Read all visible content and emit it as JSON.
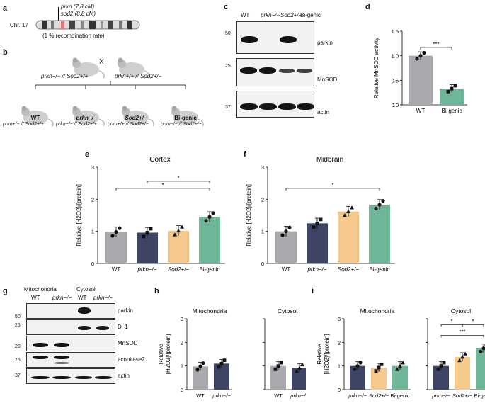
{
  "panels": {
    "a": "a",
    "b": "b",
    "c": "c",
    "d": "d",
    "e": "e",
    "f": "f",
    "g": "g",
    "h": "h",
    "i": "i"
  },
  "panel_a": {
    "gene1": "prkn (7.8 cM)",
    "gene2": "sod2 (8.8 cM)",
    "chr": "Chr. 17",
    "note": "(1 % recombination rate)"
  },
  "panel_b": {
    "cross_symbol": "X",
    "parent1": "prkn−/− // Sod2+/+",
    "parent2": "prkn+/+ // Sod2+/−",
    "offspring": [
      {
        "name": "WT",
        "geno": "prkn+/+ // Sod2+/+"
      },
      {
        "name": "prkn−/−",
        "geno": "prkn−/− // Sod2+/+"
      },
      {
        "name": "Sod2+/−",
        "geno": "prkn+/+ // Sod2+/−"
      },
      {
        "name": "Bi-genic",
        "geno": "prkn−/− // Sod2+/−"
      }
    ]
  },
  "panel_c": {
    "lanes": [
      "WT",
      "prkn−/−",
      "Sod2+/−",
      "Bi-genic"
    ],
    "blots": [
      {
        "mw": "50",
        "label": "parkin"
      },
      {
        "mw": "25",
        "label": "MnSOD"
      },
      {
        "mw": "37",
        "label": "actin"
      }
    ]
  },
  "panel_g": {
    "groups": [
      "Mitochondria",
      "Cytosol"
    ],
    "lanes": [
      "WT",
      "prkn−/−",
      "WT",
      "prkn−/−"
    ],
    "blots": [
      {
        "mw": "50",
        "label": "parkin"
      },
      {
        "mw": "25",
        "label": "Dj-1"
      },
      {
        "mw": "20",
        "label": "MnSOD"
      },
      {
        "mw": "75",
        "label": "aconitase2"
      },
      {
        "mw": "37",
        "label": "actin"
      }
    ]
  },
  "chart_data": [
    {
      "panel": "d",
      "type": "bar",
      "ylabel": "Relative MnSOD activity",
      "ylim": [
        0,
        1.5
      ],
      "yticks": [
        "0.0",
        "0.5",
        "1.0",
        "1.5"
      ],
      "categories": [
        "WT",
        "Bi-genic"
      ],
      "values": [
        1.0,
        0.33
      ],
      "colors": [
        "#a9a8ad",
        "#6fb597"
      ],
      "significance": [
        {
          "pair": "WT–Bi-genic",
          "label": "***"
        }
      ]
    },
    {
      "panel": "e",
      "type": "bar",
      "title": "Cortex",
      "ylabel": "Relative [H2O2]/[protein]",
      "ylim": [
        0,
        3
      ],
      "yticks": [
        "0",
        "1",
        "2",
        "3"
      ],
      "categories": [
        "WT",
        "prkn−/−",
        "Sod2+/−",
        "Bi-genic"
      ],
      "values": [
        0.98,
        0.96,
        1.02,
        1.45
      ],
      "colors": [
        "#a9a8ad",
        "#3d4466",
        "#f5c98c",
        "#6fb597"
      ],
      "significance": [
        {
          "pair": "WT–Bi-genic",
          "label": "*"
        },
        {
          "pair": "prkn−/−–Bi-genic",
          "label": "*"
        }
      ]
    },
    {
      "panel": "f",
      "type": "bar",
      "title": "Midbrain",
      "ylabel": "Relative [H2O2]/[protein]",
      "ylim": [
        0,
        3
      ],
      "yticks": [
        "0",
        "1",
        "2",
        "3"
      ],
      "categories": [
        "WT",
        "prkn−/−",
        "Sod2+/−",
        "Bi-genic"
      ],
      "values": [
        1.0,
        1.25,
        1.62,
        1.83
      ],
      "colors": [
        "#a9a8ad",
        "#3d4466",
        "#f5c98c",
        "#6fb597"
      ],
      "significance": [
        {
          "pair": "WT–Bi-genic",
          "label": "*"
        }
      ]
    },
    {
      "panel": "h",
      "type": "bar",
      "ylabel": "Relative [H2O2]/[protein]",
      "ylim": [
        0,
        3
      ],
      "yticks": [
        "0",
        "1",
        "2",
        "3"
      ],
      "groups": [
        {
          "title": "Mitochondria",
          "categories": [
            "WT",
            "prkn−/−"
          ],
          "values": [
            0.98,
            1.1
          ],
          "colors": [
            "#a9a8ad",
            "#3d4466"
          ]
        },
        {
          "title": "Cytosol",
          "categories": [
            "WT",
            "prkn−/−"
          ],
          "values": [
            1.0,
            0.92
          ],
          "colors": [
            "#a9a8ad",
            "#3d4466"
          ]
        }
      ]
    },
    {
      "panel": "i",
      "type": "bar",
      "ylabel": "Relative [H2O2]/[protein]",
      "ylim": [
        0,
        3
      ],
      "yticks": [
        "0",
        "1",
        "2",
        "3"
      ],
      "groups": [
        {
          "title": "Mitochondria",
          "categories": [
            "prkn−/−",
            "Sod2+/−",
            "Bi-genic"
          ],
          "values": [
            1.0,
            0.93,
            1.0
          ],
          "colors": [
            "#3d4466",
            "#f5c98c",
            "#6fb597"
          ]
        },
        {
          "title": "Cytosol",
          "categories": [
            "prkn−/−",
            "Sod2+/−",
            "Bi-genic"
          ],
          "values": [
            1.0,
            1.38,
            1.75
          ],
          "colors": [
            "#3d4466",
            "#f5c98c",
            "#6fb597"
          ],
          "significance": [
            {
              "pair": "prkn−/−–Sod2+/−",
              "label": "*"
            },
            {
              "pair": "Sod2+/−–Bi-genic",
              "label": "*"
            },
            {
              "pair": "prkn−/−–Bi-genic",
              "label": "***"
            }
          ]
        }
      ]
    }
  ]
}
